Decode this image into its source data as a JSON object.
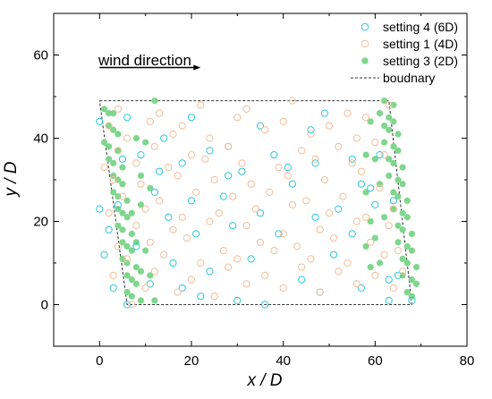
{
  "chart_data": {
    "type": "scatter",
    "xlabel": "x / D",
    "ylabel": "y / D",
    "xlim": [
      -10,
      80
    ],
    "ylim": [
      -10,
      70
    ],
    "xticks": [
      0,
      20,
      40,
      60,
      80
    ],
    "yticks": [
      0,
      20,
      40,
      60
    ],
    "xtick_labels": [
      "0",
      "20",
      "40",
      "60",
      "80"
    ],
    "ytick_labels": [
      "0",
      "20",
      "40",
      "60"
    ],
    "grid": false,
    "legend_position": "top-right",
    "annotation": {
      "text": "wind direction",
      "arrow_from": [
        0,
        57
      ],
      "arrow_to": [
        22,
        57
      ]
    },
    "series": [
      {
        "name": "setting 4 (6D)",
        "color": "#2bc8d8",
        "marker": "open-circle",
        "x": [
          6,
          22,
          36,
          63,
          68,
          3,
          18,
          30,
          48,
          65,
          11,
          24,
          44,
          57,
          1,
          16,
          33,
          51,
          63,
          8,
          21,
          39,
          55,
          2,
          15,
          29,
          47,
          60,
          4,
          20,
          35,
          52,
          64,
          12,
          27,
          42,
          59,
          0,
          13,
          28,
          41,
          57,
          5,
          18,
          31,
          47,
          61,
          9,
          24,
          38,
          55,
          0,
          14,
          28,
          46,
          6,
          20,
          35,
          49
        ],
        "y": [
          0,
          2,
          0,
          1,
          1,
          4,
          4,
          1,
          3,
          7,
          5,
          8,
          6,
          4,
          12,
          10,
          11,
          12,
          6,
          14,
          17,
          17,
          17,
          18,
          21,
          19,
          21,
          24,
          24,
          25,
          22,
          23,
          25,
          27,
          26,
          29,
          28,
          23,
          32,
          31,
          33,
          29,
          35,
          34,
          32,
          34,
          36,
          36,
          37,
          36,
          35,
          44,
          40,
          38,
          42,
          45,
          45,
          43,
          46
        ]
      },
      {
        "name": "setting 1 (4D)",
        "color": "#f3bd95",
        "marker": "open-circle",
        "x": [
          7,
          10,
          17,
          25,
          32,
          40,
          48,
          56,
          64,
          3,
          12,
          20,
          28,
          36,
          44,
          52,
          60,
          66,
          6,
          14,
          22,
          30,
          38,
          46,
          54,
          62,
          4,
          11,
          19,
          27,
          35,
          43,
          51,
          59,
          65,
          8,
          16,
          24,
          32,
          40,
          48,
          56,
          63,
          2,
          10,
          18,
          26,
          34,
          42,
          50,
          58,
          64,
          5,
          13,
          21,
          29,
          37,
          45,
          53,
          61,
          3,
          9,
          17,
          25,
          33,
          41,
          49,
          57,
          1,
          8,
          15,
          23,
          31,
          39,
          47,
          55,
          62,
          4,
          12,
          20,
          28,
          44,
          52,
          60,
          6,
          16,
          24,
          36,
          46,
          56,
          2,
          11,
          18,
          30,
          40,
          50,
          58,
          4,
          13,
          22,
          32,
          42,
          54,
          63
        ],
        "y": [
          0,
          4,
          3,
          2,
          5,
          4,
          3,
          5,
          4,
          7,
          8,
          6,
          9,
          7,
          9,
          8,
          7,
          8,
          11,
          12,
          10,
          11,
          13,
          11,
          10,
          12,
          14,
          15,
          16,
          13,
          15,
          14,
          16,
          15,
          13,
          19,
          18,
          20,
          19,
          17,
          18,
          20,
          19,
          22,
          23,
          21,
          22,
          23,
          24,
          22,
          21,
          23,
          26,
          25,
          27,
          26,
          27,
          25,
          26,
          28,
          30,
          29,
          31,
          30,
          29,
          31,
          30,
          32,
          33,
          34,
          33,
          35,
          34,
          33,
          35,
          34,
          36,
          37,
          38,
          36,
          38,
          37,
          38,
          39,
          40,
          41,
          40,
          42,
          41,
          40,
          43,
          44,
          43,
          45,
          44,
          43,
          45,
          47,
          46,
          48,
          47,
          49,
          46,
          48
        ]
      },
      {
        "name": "setting 3 (2D)",
        "color": "#7fd68d",
        "marker": "filled-circle",
        "x": [
          12,
          62,
          64,
          1,
          2,
          3,
          61,
          63,
          64,
          2,
          3,
          4,
          62,
          63,
          65,
          1,
          2,
          4,
          62,
          64,
          65,
          2,
          3,
          5,
          63,
          64,
          66,
          3,
          4,
          5,
          63,
          65,
          66,
          3,
          4,
          6,
          64,
          65,
          67,
          4,
          5,
          6,
          64,
          66,
          67,
          4,
          5,
          7,
          65,
          66,
          68,
          5,
          6,
          7,
          65,
          67,
          68,
          5,
          6,
          8,
          66,
          67,
          69,
          6,
          7,
          8,
          66,
          68,
          69,
          6,
          7,
          9,
          67,
          68,
          12,
          59,
          8,
          10,
          58,
          60,
          9,
          11,
          58,
          61,
          7,
          9,
          59,
          62,
          8,
          10,
          58,
          60,
          9,
          11,
          59,
          61
        ],
        "y": [
          49,
          49,
          48,
          47,
          46,
          46,
          46,
          45,
          44,
          43,
          42,
          41,
          43,
          42,
          41,
          39,
          38,
          37,
          39,
          38,
          37,
          35,
          34,
          33,
          35,
          34,
          33,
          31,
          30,
          29,
          31,
          30,
          29,
          27,
          26,
          25,
          27,
          26,
          25,
          23,
          22,
          21,
          23,
          22,
          21,
          19,
          18,
          17,
          19,
          18,
          17,
          15,
          14,
          13,
          15,
          14,
          13,
          11,
          10,
          9,
          11,
          10,
          9,
          7,
          6,
          5,
          7,
          6,
          5,
          3,
          2,
          1,
          3,
          2,
          1,
          44,
          40,
          39,
          36,
          35,
          31,
          28,
          27,
          29,
          22,
          24,
          20,
          21,
          15,
          13,
          14,
          16,
          8,
          7,
          9,
          10
        ]
      },
      {
        "name": "boudnary",
        "color": "#333333",
        "line": "dashed",
        "x": [
          0,
          63,
          68,
          6,
          0
        ],
        "y": [
          49,
          49,
          0,
          0,
          49
        ]
      }
    ]
  }
}
